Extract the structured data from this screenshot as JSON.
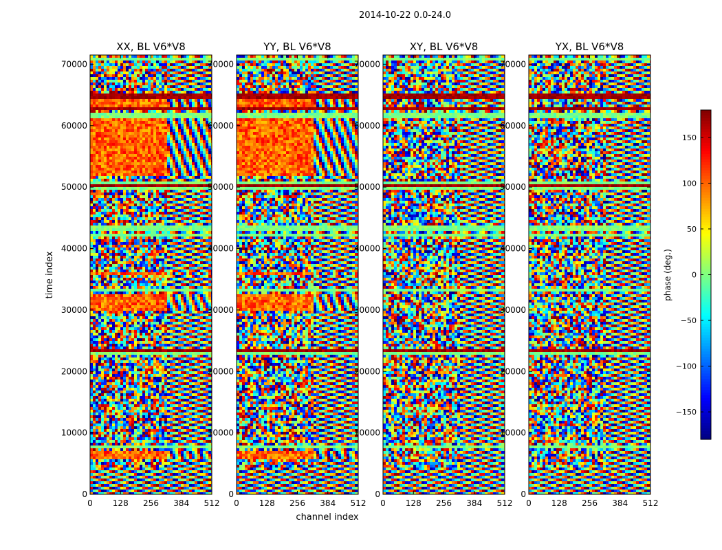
{
  "chart_data": {
    "type": "heatmap",
    "suptitle": "2014-10-22 0.0-24.0",
    "xlabel": "channel index",
    "ylabel": "time index",
    "xlim": [
      0,
      512
    ],
    "ylim": [
      0,
      71500
    ],
    "xticks": [
      0,
      128,
      256,
      384,
      512
    ],
    "yticks": [
      0,
      10000,
      20000,
      30000,
      40000,
      50000,
      60000,
      70000
    ],
    "colorbar": {
      "label": "phase (deg.)",
      "range": [
        -180,
        180
      ],
      "ticks": [
        -150,
        -100,
        -50,
        0,
        50,
        100,
        150
      ],
      "colormap": "jet"
    },
    "panels": [
      {
        "title": "XX, BL V6*V8",
        "phase_band": "warm"
      },
      {
        "title": "YY, BL V6*V8",
        "phase_band": "warm"
      },
      {
        "title": "XY, BL V6*V8",
        "phase_band": "noise"
      },
      {
        "title": "YX, BL V6*V8",
        "phase_band": "noise"
      }
    ]
  }
}
